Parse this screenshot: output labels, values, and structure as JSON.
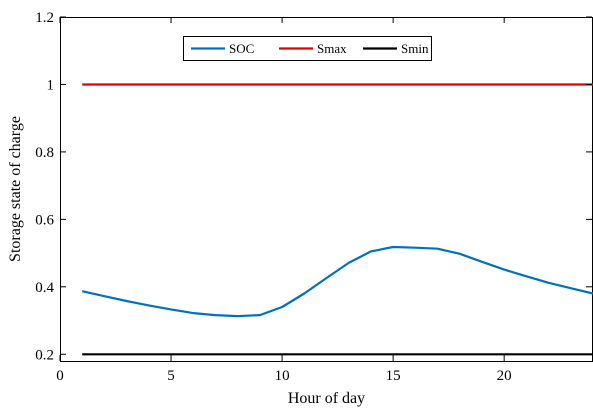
{
  "chart_data": {
    "type": "line",
    "xlabel": "Hour of day",
    "ylabel": "Storage state of charge",
    "xlim": [
      0,
      24
    ],
    "ylim": [
      0.18,
      1.2
    ],
    "xticks": [
      0,
      5,
      10,
      15,
      20
    ],
    "yticks": [
      0.2,
      0.4,
      0.6,
      0.8,
      1,
      1.2
    ],
    "xtick_labels": [
      "0",
      "5",
      "10",
      "15",
      "20"
    ],
    "ytick_labels": [
      "0.2",
      "0.4",
      "0.6",
      "0.8",
      "1",
      "1.2"
    ],
    "grid": false,
    "legend_position": "top-center, horizontal",
    "series": [
      {
        "name": "SOC",
        "color": "#0072BD",
        "x": [
          1,
          2,
          3,
          4,
          5,
          6,
          7,
          8,
          9,
          10,
          11,
          12,
          13,
          14,
          15,
          16,
          17,
          18,
          19,
          20,
          21,
          22,
          23,
          24
        ],
        "y": [
          0.387,
          0.372,
          0.358,
          0.345,
          0.333,
          0.322,
          0.316,
          0.313,
          0.316,
          0.34,
          0.38,
          0.426,
          0.471,
          0.505,
          0.518,
          0.516,
          0.513,
          0.498,
          0.474,
          0.451,
          0.431,
          0.412,
          0.396,
          0.38
        ]
      },
      {
        "name": "Smax",
        "color": "#E00000",
        "x": [
          1,
          24
        ],
        "y": [
          1.0,
          1.0
        ]
      },
      {
        "name": "Smin",
        "color": "#000000",
        "x": [
          1,
          24
        ],
        "y": [
          0.2,
          0.2
        ]
      }
    ]
  }
}
